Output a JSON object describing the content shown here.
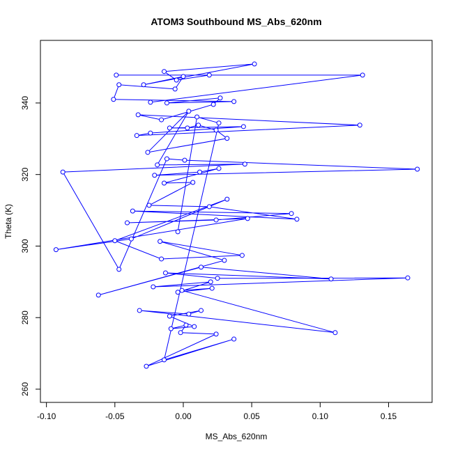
{
  "chart_data": {
    "type": "line",
    "title": "ATOM3 Southbound MS_Abs_620nm",
    "x_label": "MS_Abs_620nm",
    "y_label": "Theta (K)",
    "xlim": [
      -0.1044,
      0.1818
    ],
    "ylim": [
      256.3,
      357.5
    ],
    "xticks": [
      {
        "value": -0.1,
        "label": "-0.10"
      },
      -0.05,
      {
        "value": 0,
        "label": "0.00"
      },
      0.05,
      {
        "value": 0.1,
        "label": "0.10"
      },
      0.15
    ],
    "yticks": [
      260,
      280,
      300,
      320,
      340
    ],
    "x": [
      -0.024,
      0.131,
      -0.049,
      0.019,
      -0.005,
      -0.014,
      0.052,
      -0.029,
      0.0,
      -0.006,
      -0.047,
      -0.051,
      0.037,
      -0.012,
      0.027,
      0.022,
      -0.016,
      -0.033,
      0.129,
      -0.034,
      -0.024,
      0.044,
      -0.01,
      0.003,
      0.011,
      0.024,
      0.032,
      -0.026,
      0.004,
      -0.019,
      0.045,
      -0.088,
      -0.047,
      -0.012,
      0.001,
      0.171,
      -0.021,
      0.012,
      0.026,
      -0.014,
      0.007,
      -0.025,
      0.019,
      0.083,
      -0.037,
      0.079,
      0.024,
      -0.041,
      0.047,
      -0.093,
      -0.038,
      0.032,
      -0.05,
      -0.016,
      0.043,
      -0.017,
      0.03,
      -0.062,
      0.013,
      0.108,
      -0.013,
      0.025,
      0.164,
      -0.022,
      0.02,
      -0.004,
      0.021,
      -0.001,
      0.111,
      -0.032,
      0.004,
      0.013,
      -0.01,
      0.008,
      -0.009,
      0.002,
      -0.002,
      0.024,
      -0.027,
      0.037,
      -0.014,
      0.026,
      0.01,
      -0.004
    ],
    "series": [
      {
        "color": "#0000ff",
        "values": [
          340.2,
          347.8,
          347.8,
          347.8,
          346.4,
          348.8,
          350.9,
          345.1,
          347.4,
          343.9,
          345.1,
          341.0,
          340.4,
          340.0,
          341.4,
          339.6,
          335.3,
          336.7,
          333.8,
          330.9,
          331.6,
          333.4,
          333.0,
          333.0,
          333.8,
          332.4,
          330.1,
          326.2,
          337.7,
          322.7,
          322.9,
          320.7,
          293.5,
          324.4,
          324.0,
          321.5,
          319.8,
          320.7,
          321.7,
          317.6,
          317.8,
          311.4,
          311.0,
          307.5,
          309.8,
          309.1,
          307.3,
          306.5,
          307.7,
          299.0,
          302.0,
          313.1,
          301.5,
          296.4,
          297.4,
          301.3,
          296.0,
          286.3,
          294.1,
          290.8,
          292.5,
          291.0,
          291.1,
          288.6,
          290.0,
          287.1,
          288.2,
          287.6,
          275.8,
          282.0,
          281.0,
          282.0,
          280.4,
          277.5,
          276.9,
          277.9,
          275.8,
          275.4,
          266.4,
          274.0,
          268.2,
          334.4,
          336.1,
          304.0
        ]
      }
    ]
  }
}
